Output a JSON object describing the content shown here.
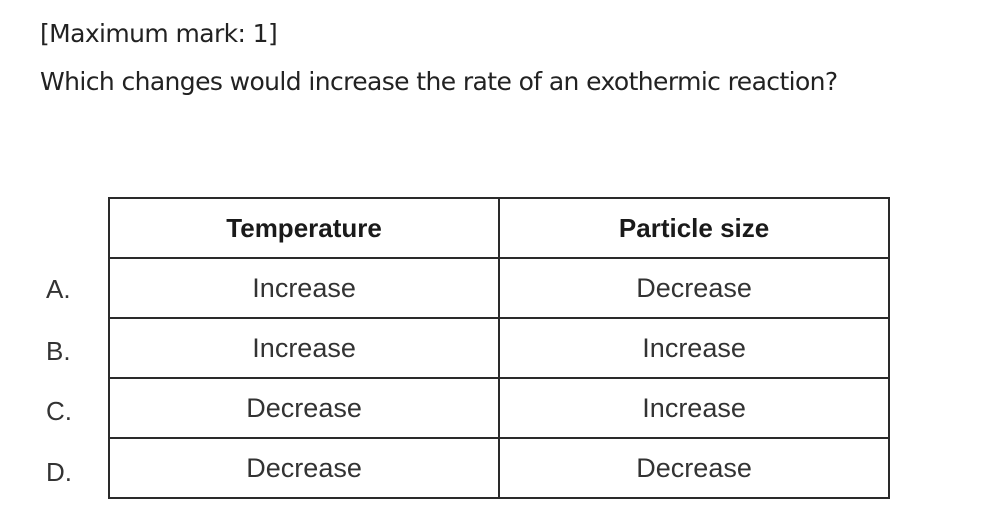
{
  "header": {
    "mark": "[Maximum mark: 1]",
    "question": "Which changes would increase the rate of an exothermic reaction?"
  },
  "table": {
    "columns": [
      "Temperature",
      "Particle size"
    ],
    "rows": [
      {
        "option": "A.",
        "temperature": "Increase",
        "particle_size": "Decrease"
      },
      {
        "option": "B.",
        "temperature": "Increase",
        "particle_size": "Increase"
      },
      {
        "option": "C.",
        "temperature": "Decrease",
        "particle_size": "Increase"
      },
      {
        "option": "D.",
        "temperature": "Decrease",
        "particle_size": "Decrease"
      }
    ]
  }
}
